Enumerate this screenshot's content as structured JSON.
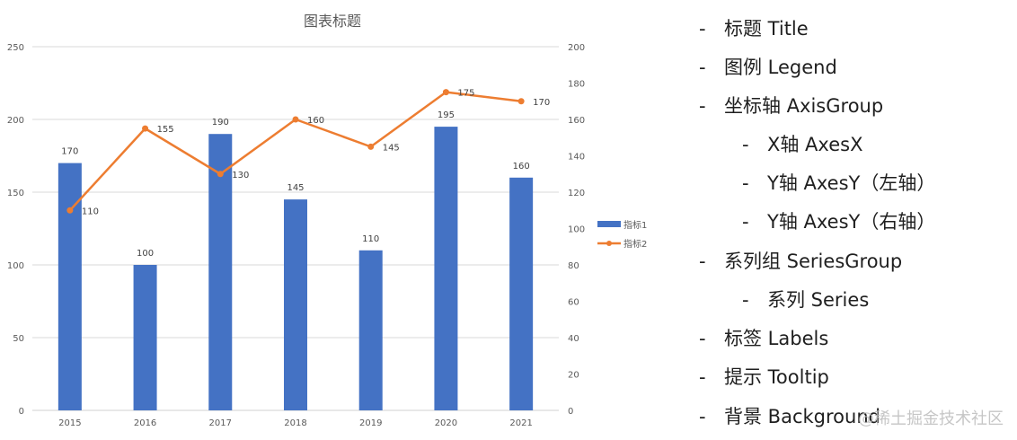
{
  "chart_data": {
    "type": "bar+line",
    "title": "图表标题",
    "categories": [
      "2015",
      "2016",
      "2017",
      "2018",
      "2019",
      "2020",
      "2021"
    ],
    "series": [
      {
        "name": "指标1",
        "type": "bar",
        "axis": "left",
        "color": "#4472C4",
        "values": [
          170,
          100,
          190,
          145,
          110,
          195,
          160
        ]
      },
      {
        "name": "指标2",
        "type": "line",
        "axis": "right",
        "color": "#ED7D31",
        "values": [
          110,
          155,
          130,
          160,
          145,
          175,
          170
        ]
      }
    ],
    "y_left": {
      "min": 0,
      "max": 250,
      "ticks": [
        0,
        50,
        100,
        150,
        200,
        250
      ]
    },
    "y_right": {
      "min": 0,
      "max": 200,
      "ticks": [
        0,
        20,
        40,
        60,
        80,
        100,
        120,
        140,
        160,
        180,
        200
      ]
    },
    "xlabel": "",
    "ylabel": "",
    "grid": true,
    "legend_position": "right"
  },
  "outline": {
    "items": [
      {
        "level": 0,
        "text": "标题 Title"
      },
      {
        "level": 0,
        "text": "图例 Legend"
      },
      {
        "level": 0,
        "text": "坐标轴 AxisGroup"
      },
      {
        "level": 1,
        "text": "X轴 AxesX"
      },
      {
        "level": 1,
        "text": "Y轴 AxesY（左轴）"
      },
      {
        "level": 1,
        "text": "Y轴 AxesY（右轴）"
      },
      {
        "level": 0,
        "text": "系列组 SeriesGroup"
      },
      {
        "level": 1,
        "text": "系列 Series"
      },
      {
        "level": 0,
        "text": "标签 Labels"
      },
      {
        "level": 0,
        "text": "提示 Tooltip"
      },
      {
        "level": 0,
        "text": "背景 Background"
      }
    ],
    "dash": "-"
  },
  "watermark": "@稀土掘金技术社区"
}
